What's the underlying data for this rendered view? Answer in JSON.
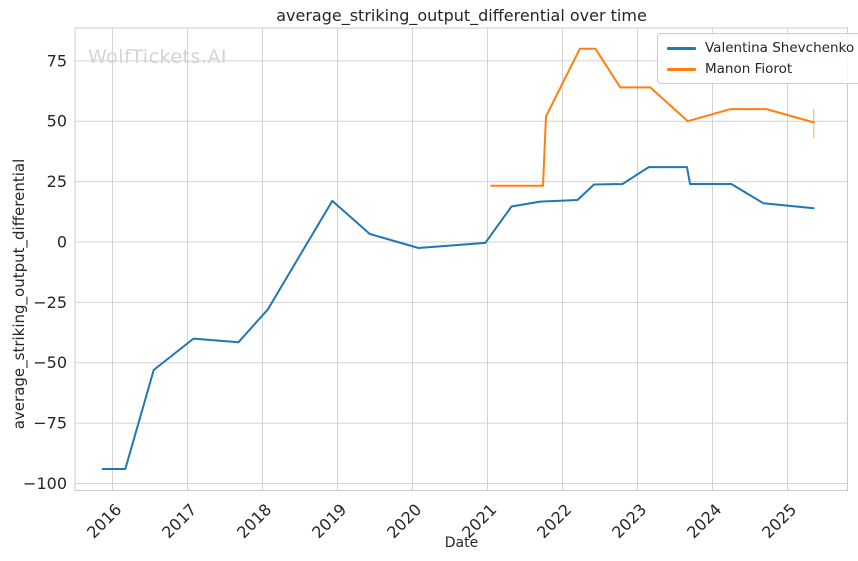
{
  "chart_data": {
    "type": "line",
    "title": "average_striking_output_differential over time",
    "xlabel": "Date",
    "ylabel": "average_striking_output_differential",
    "watermark": "WolfTickets.AI",
    "legend_position": "upper right",
    "grid": true,
    "xlim": [
      2015.5,
      2025.8
    ],
    "ylim": [
      -102.9,
      88.6
    ],
    "x_ticks": [
      {
        "value": 2016,
        "label": "2016"
      },
      {
        "value": 2017,
        "label": "2017"
      },
      {
        "value": 2018,
        "label": "2018"
      },
      {
        "value": 2019,
        "label": "2019"
      },
      {
        "value": 2020,
        "label": "2020"
      },
      {
        "value": 2021,
        "label": "2021"
      },
      {
        "value": 2022,
        "label": "2022"
      },
      {
        "value": 2023,
        "label": "2023"
      },
      {
        "value": 2024,
        "label": "2024"
      },
      {
        "value": 2025,
        "label": "2025"
      }
    ],
    "y_ticks": [
      {
        "value": -100,
        "label": "−100"
      },
      {
        "value": -75,
        "label": "−75"
      },
      {
        "value": -50,
        "label": "−50"
      },
      {
        "value": -25,
        "label": "−25"
      },
      {
        "value": 0,
        "label": "0"
      },
      {
        "value": 25,
        "label": "25"
      },
      {
        "value": 50,
        "label": "50"
      },
      {
        "value": 75,
        "label": "75"
      }
    ],
    "style": {
      "grid_color": "#d3d3d3",
      "spine_color": "#cbcbcb",
      "text_color": "#262626",
      "watermark_color": "#d4d4d4",
      "background": "#ffffff"
    },
    "series": [
      {
        "name": "Valentina Shevchenko",
        "color": "#1f77b4",
        "points": [
          [
            2015.87,
            -94
          ],
          [
            2016.17,
            -94
          ],
          [
            2016.55,
            -53
          ],
          [
            2017.08,
            -40
          ],
          [
            2017.68,
            -41.5
          ],
          [
            2018.07,
            -28
          ],
          [
            2018.93,
            17
          ],
          [
            2019.43,
            3.3
          ],
          [
            2020.08,
            -2.5
          ],
          [
            2020.97,
            -0.4
          ],
          [
            2021.32,
            14.7
          ],
          [
            2021.7,
            16.7
          ],
          [
            2022.2,
            17.4
          ],
          [
            2022.42,
            23.8
          ],
          [
            2022.8,
            24
          ],
          [
            2023.15,
            31
          ],
          [
            2023.66,
            31
          ],
          [
            2023.7,
            24
          ],
          [
            2024.25,
            24
          ],
          [
            2024.68,
            16
          ],
          [
            2025.35,
            14
          ]
        ]
      },
      {
        "name": "Manon Fiorot",
        "color": "#ff7f0e",
        "points": [
          [
            2021.05,
            23.3
          ],
          [
            2021.74,
            23.3
          ],
          [
            2021.78,
            52
          ],
          [
            2022.23,
            80
          ],
          [
            2022.44,
            80
          ],
          [
            2022.77,
            64
          ],
          [
            2023.17,
            64
          ],
          [
            2023.67,
            50
          ],
          [
            2024.24,
            55
          ],
          [
            2024.72,
            55
          ],
          [
            2025.35,
            49.5
          ]
        ],
        "error_bar": {
          "x": 2025.35,
          "y_low": 43,
          "y_high": 55
        }
      }
    ]
  }
}
